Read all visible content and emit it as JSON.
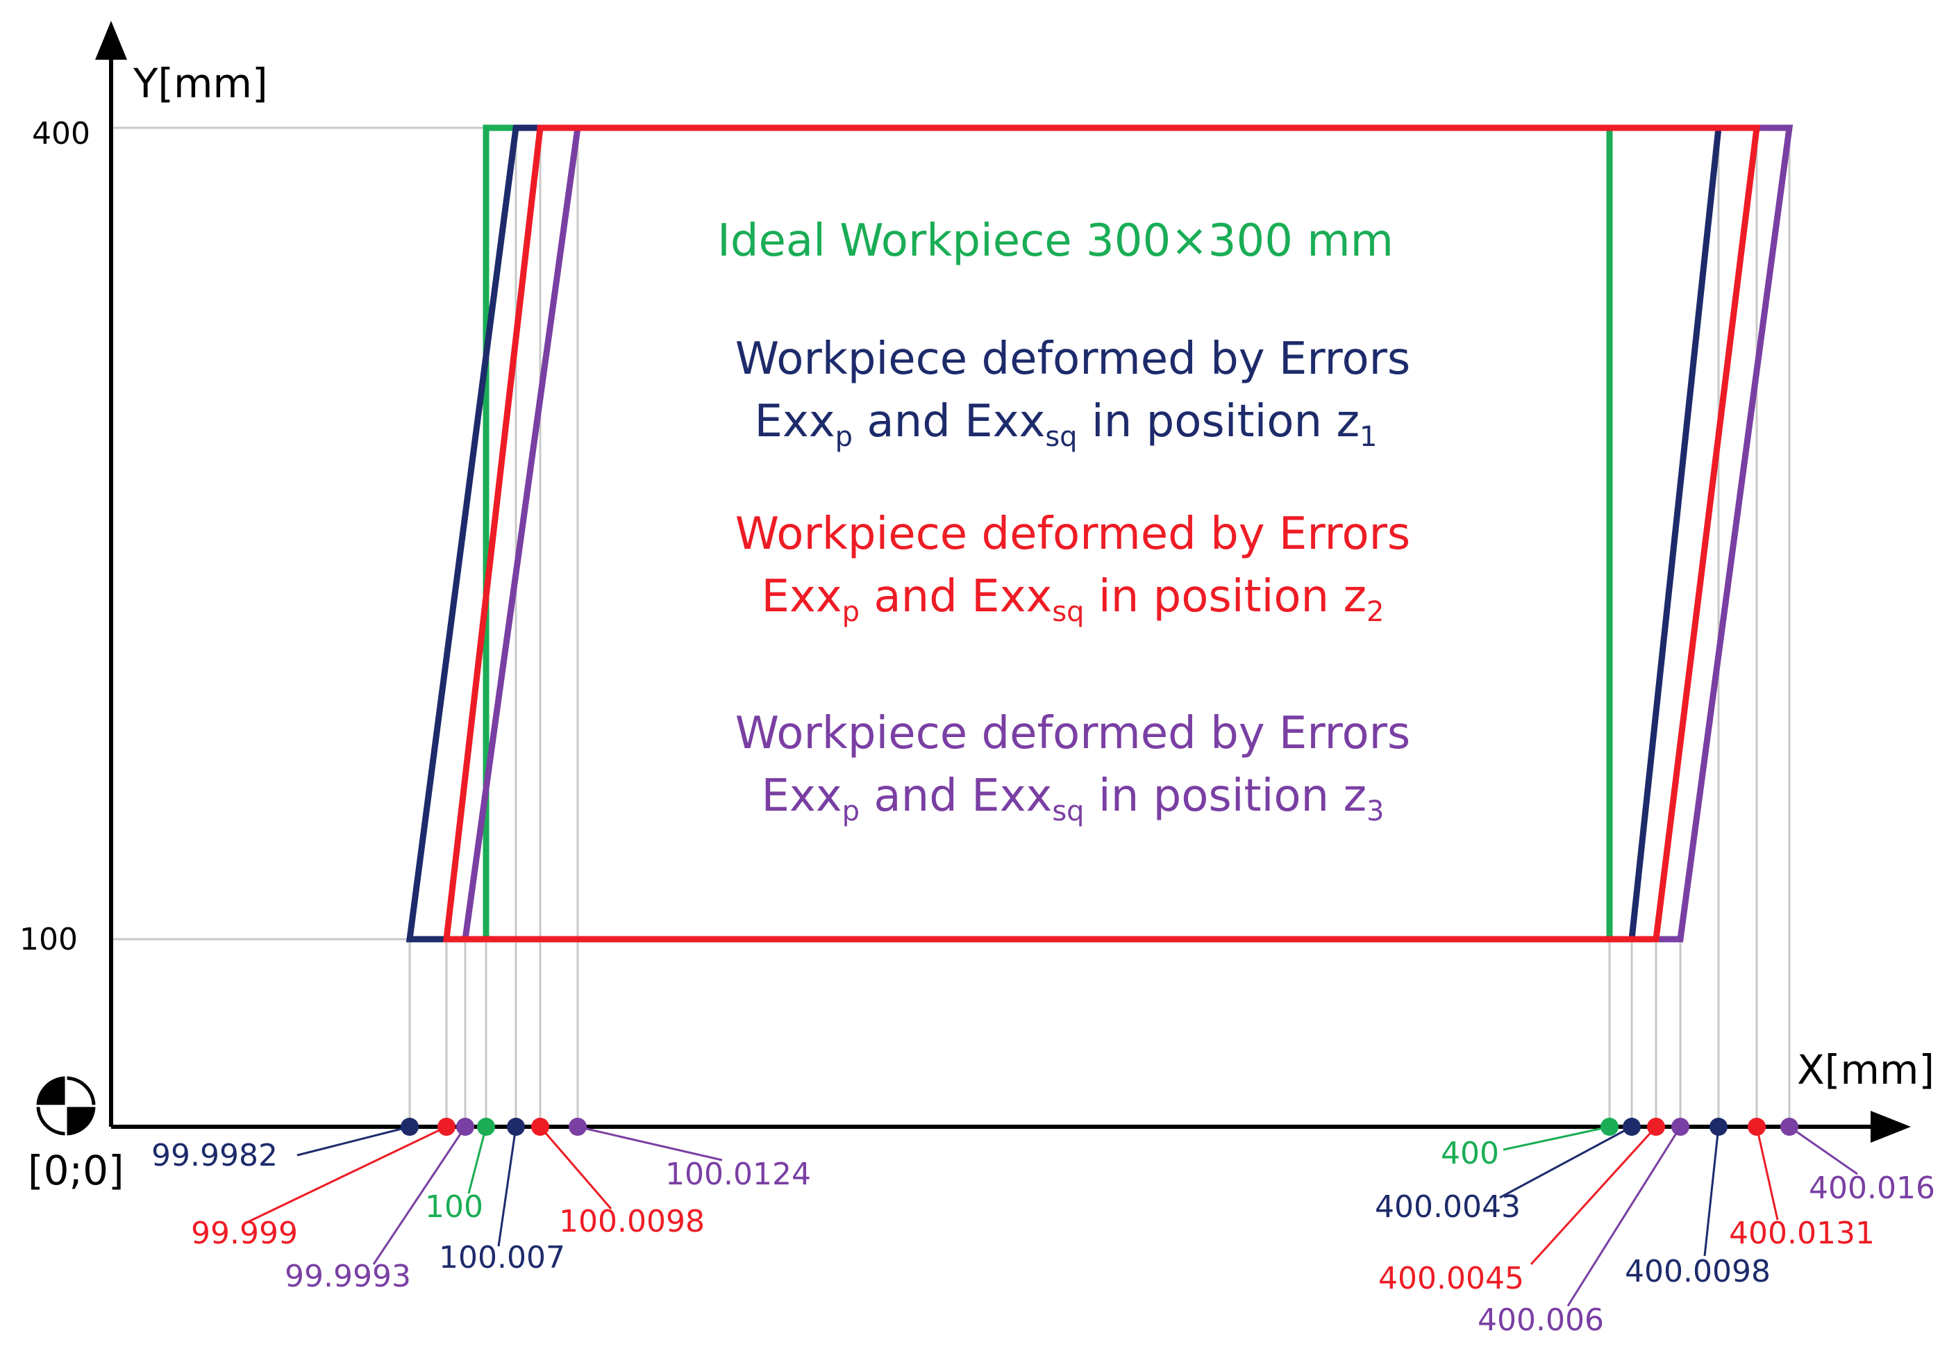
{
  "axes": {
    "y_label": "Y[mm]",
    "x_label": "X[mm]",
    "origin_label": "[0;0]",
    "y_ticks": [
      "400",
      "100"
    ]
  },
  "colors": {
    "green": "#1aad55",
    "navy": "#1d2b6b",
    "red": "#ee1c25",
    "purple": "#7a3fa3",
    "grid": "#c8c8c8",
    "axis": "#000000"
  },
  "legend": [
    {
      "id": "ideal",
      "color": "green",
      "line1": "Ideal Workpiece 300×300 mm"
    },
    {
      "id": "z1",
      "color": "navy",
      "line1": "Workpiece deformed by Errors",
      "l2a": "Exx",
      "l2sub1": "p",
      "l2b": " and Exx",
      "l2sub2": "sq",
      "l2c": " in position z",
      "l2sub3": "1"
    },
    {
      "id": "z2",
      "color": "red",
      "line1": "Workpiece deformed by Errors",
      "l2a": "Exx",
      "l2sub1": "p",
      "l2b": " and Exx",
      "l2sub2": "sq",
      "l2c": " in position z",
      "l2sub3": "2"
    },
    {
      "id": "z3",
      "color": "purple",
      "line1": "Workpiece deformed by Errors",
      "l2a": "Exx",
      "l2sub1": "p",
      "l2b": " and Exx",
      "l2sub2": "sq",
      "l2c": " in position z",
      "l2sub3": "3"
    }
  ],
  "shapes": [
    {
      "id": "ideal",
      "color": "green",
      "bottom_left": 100,
      "top_left": 100,
      "top_right": 400,
      "bottom_right": 400
    },
    {
      "id": "z1",
      "color": "navy",
      "bottom_left": 99.9982,
      "top_left": 100.007,
      "top_right": 400.0098,
      "bottom_right": 400.0043
    },
    {
      "id": "z3",
      "color": "purple",
      "bottom_left": 99.9993,
      "top_left": 100.0124,
      "top_right": 400.016,
      "bottom_right": 400.006
    },
    {
      "id": "z2",
      "color": "red",
      "bottom_left": 99.999,
      "top_left": 100.0098,
      "top_right": 400.0131,
      "bottom_right": 400.0045
    }
  ],
  "markers": [
    {
      "value": 99.9982,
      "label": "99.9982",
      "color": "navy"
    },
    {
      "value": 99.999,
      "label": "99.999",
      "color": "red"
    },
    {
      "value": 99.9993,
      "label": "99.9993",
      "color": "purple"
    },
    {
      "value": 100,
      "label": "100",
      "color": "green"
    },
    {
      "value": 100.007,
      "label": "100.007",
      "color": "navy"
    },
    {
      "value": 100.0098,
      "label": "100.0098",
      "color": "red"
    },
    {
      "value": 100.0124,
      "label": "100.0124",
      "color": "purple"
    },
    {
      "value": 400,
      "label": "400",
      "color": "green"
    },
    {
      "value": 400.0043,
      "label": "400.0043",
      "color": "navy"
    },
    {
      "value": 400.0045,
      "label": "400.0045",
      "color": "red"
    },
    {
      "value": 400.006,
      "label": "400.006",
      "color": "purple"
    },
    {
      "value": 400.0098,
      "label": "400.0098",
      "color": "navy"
    },
    {
      "value": 400.0131,
      "label": "400.0131",
      "color": "red"
    },
    {
      "value": 400.016,
      "label": "400.016",
      "color": "purple"
    }
  ]
}
